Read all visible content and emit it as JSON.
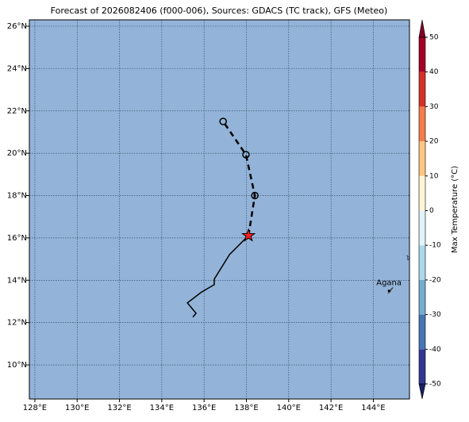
{
  "chart_data": {
    "type": "map",
    "title": "Forecast of 2026082406 (f000-006), Sources: GDACS (TC track), GFS (Meteo)",
    "background": "#93b4d8",
    "xlim": [
      127.74,
      145.71
    ],
    "ylim": [
      8.39,
      26.3
    ],
    "xticks": [
      {
        "value": 128,
        "label": "128°E"
      },
      {
        "value": 130,
        "label": "130°E"
      },
      {
        "value": 132,
        "label": "132°E"
      },
      {
        "value": 134,
        "label": "134°E"
      },
      {
        "value": 136,
        "label": "136°E"
      },
      {
        "value": 138,
        "label": "138°E"
      },
      {
        "value": 140,
        "label": "140°E"
      },
      {
        "value": 142,
        "label": "142°E"
      },
      {
        "value": 144,
        "label": "144°E"
      }
    ],
    "yticks": [
      {
        "value": 10,
        "label": "10°N"
      },
      {
        "value": 12,
        "label": "12°N"
      },
      {
        "value": 14,
        "label": "14°N"
      },
      {
        "value": 16,
        "label": "16°N"
      },
      {
        "value": 18,
        "label": "18°N"
      },
      {
        "value": 20,
        "label": "20°N"
      },
      {
        "value": 22,
        "label": "22°N"
      },
      {
        "value": 24,
        "label": "24°N"
      },
      {
        "value": 26,
        "label": "26°N"
      }
    ],
    "grid": true,
    "tracks": [
      {
        "style": "solid",
        "lon": [
          135.47,
          135.62,
          135.21,
          135.85,
          136.48,
          136.48,
          137.2,
          138.1
        ],
        "lat": [
          12.26,
          12.44,
          12.93,
          13.42,
          13.79,
          14.05,
          15.21,
          16.11
        ]
      },
      {
        "style": "dashed",
        "lon": [
          138.1,
          138.4,
          137.98,
          136.9
        ],
        "lat": [
          16.11,
          18.0,
          19.93,
          21.5
        ]
      }
    ],
    "current_position": {
      "lon": 138.1,
      "lat": 16.11,
      "color": "#ff2020"
    },
    "places": [
      {
        "name": "Agana",
        "lon": 144.74,
        "lat": 13.5
      }
    ],
    "colorbar": {
      "label": "Max Temperature (°C)",
      "lim": [
        -50,
        50
      ],
      "ticks": [
        -50,
        -40,
        -30,
        -20,
        -10,
        0,
        10,
        20,
        30,
        40,
        50
      ],
      "colors": [
        "#313695",
        "#4575b4",
        "#74add1",
        "#abd9e9",
        "#e0f3f8",
        "#fff5d6",
        "#fdc682",
        "#f67c4a",
        "#d73027",
        "#a50026"
      ],
      "under_color": "#1a1f66",
      "over_color": "#800026"
    }
  }
}
